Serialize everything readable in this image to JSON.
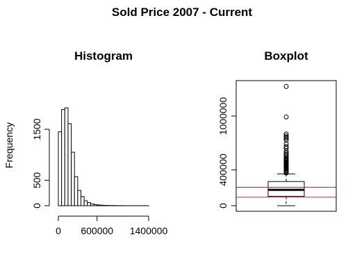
{
  "figure": {
    "title": "Sold Price 2007 - Current"
  },
  "chart_data": [
    {
      "type": "bar",
      "title": "Histogram",
      "xlabel": "",
      "ylabel": "Frequency",
      "x_ticks": [
        0,
        600000,
        1400000
      ],
      "x_tick_labels": [
        "0",
        "600000",
        "1400000"
      ],
      "y_ticks": [
        0,
        500,
        1500
      ],
      "y_tick_labels": [
        "0",
        "500",
        "1500"
      ],
      "bin_width": 50000,
      "bin_starts": [
        0,
        50000,
        100000,
        150000,
        200000,
        250000,
        300000,
        350000,
        400000,
        450000,
        500000,
        550000,
        600000,
        650000,
        700000,
        750000,
        800000,
        850000,
        900000,
        950000,
        1000000,
        1050000,
        1100000,
        1150000,
        1200000,
        1250000,
        1300000,
        1350000
      ],
      "values": [
        1450,
        1890,
        1920,
        1610,
        1050,
        570,
        300,
        180,
        95,
        60,
        35,
        22,
        15,
        10,
        7,
        5,
        4,
        3,
        2,
        2,
        1,
        1,
        1,
        1,
        1,
        1,
        1,
        1
      ],
      "grid": false
    },
    {
      "type": "boxplot",
      "title": "Boxplot",
      "y_ticks": [
        0,
        400000,
        1000000
      ],
      "y_tick_labels": [
        "0",
        "400000",
        "1000000"
      ],
      "ylim": [
        -40000,
        1390000
      ],
      "box": {
        "min": 0,
        "q1": 105000,
        "median": 177000,
        "q3": 270000,
        "whisker_high": 355000
      },
      "outliers": [
        365000,
        372000,
        380000,
        390000,
        400000,
        410000,
        420000,
        430000,
        440000,
        450000,
        460000,
        470000,
        480000,
        490000,
        500000,
        510000,
        520000,
        530000,
        545000,
        560000,
        575000,
        590000,
        610000,
        640000,
        660000,
        690000,
        730000,
        750000,
        765000,
        780000,
        800000,
        990000,
        1330000
      ],
      "reference_lines": {
        "values": [
          95000,
          205000
        ],
        "color": "#d62728"
      },
      "grid": false
    }
  ]
}
